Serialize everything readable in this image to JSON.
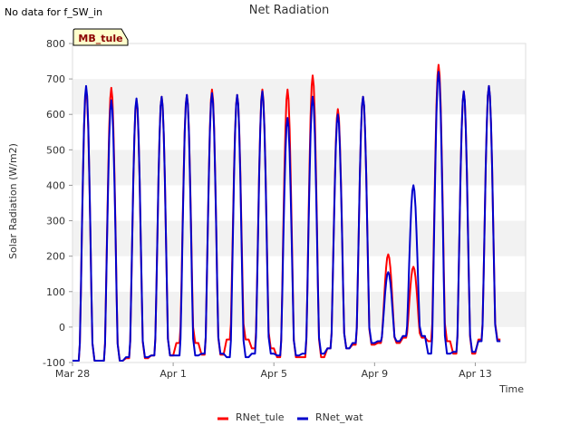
{
  "no_data_note": "No data for f_SW_in",
  "chart_data": {
    "type": "line",
    "title": "Net Radiation",
    "xlabel": "Time",
    "ylabel": "Solar Radiation (W/m2)",
    "site_label": "MB_tule",
    "ylim": [
      -100,
      800
    ],
    "yticks": [
      -100,
      0,
      100,
      200,
      300,
      400,
      500,
      600,
      700,
      800
    ],
    "xlim_days": [
      "2024-03-28",
      "2024-04-15"
    ],
    "xticks": [
      {
        "label": "Mar 28",
        "date": "2024-03-28"
      },
      {
        "label": "Apr 1",
        "date": "2024-04-01"
      },
      {
        "label": "Apr 5",
        "date": "2024-04-05"
      },
      {
        "label": "Apr 9",
        "date": "2024-04-09"
      },
      {
        "label": "Apr 13",
        "date": "2024-04-13"
      }
    ],
    "grid": "horizontal bands",
    "legend_position": "bottom",
    "series": [
      {
        "name": "RNet_tule",
        "color": "#ff0000",
        "daily": [
          {
            "date": "2024-03-28",
            "peak": 670,
            "night": -95
          },
          {
            "date": "2024-03-29",
            "peak": 675,
            "night": -95
          },
          {
            "date": "2024-03-30",
            "peak": 640,
            "night": -88
          },
          {
            "date": "2024-03-31",
            "peak": 650,
            "night": -80
          },
          {
            "date": "2024-04-01",
            "peak": 655,
            "night": -45
          },
          {
            "date": "2024-04-02",
            "peak": 670,
            "night": -78
          },
          {
            "date": "2024-04-03",
            "peak": 655,
            "night": -35
          },
          {
            "date": "2024-04-04",
            "peak": 670,
            "night": -60
          },
          {
            "date": "2024-04-05",
            "peak": 670,
            "night": -85
          },
          {
            "date": "2024-04-06",
            "peak": 710,
            "night": -85
          },
          {
            "date": "2024-04-07",
            "peak": 615,
            "night": -60
          },
          {
            "date": "2024-04-08",
            "peak": 650,
            "night": -50
          },
          {
            "date": "2024-04-09",
            "peak": 205,
            "night": -45
          },
          {
            "date": "2024-04-10",
            "peak": 170,
            "night": -30
          },
          {
            "date": "2024-04-11",
            "peak": 740,
            "night": -40
          },
          {
            "date": "2024-04-12",
            "peak": 665,
            "night": -75
          },
          {
            "date": "2024-04-13",
            "peak": 680,
            "night": -35
          }
        ]
      },
      {
        "name": "RNet_wat",
        "color": "#0000cc",
        "daily": [
          {
            "date": "2024-03-28",
            "peak": 680,
            "night": -95
          },
          {
            "date": "2024-03-29",
            "peak": 640,
            "night": -95
          },
          {
            "date": "2024-03-30",
            "peak": 645,
            "night": -85
          },
          {
            "date": "2024-03-31",
            "peak": 650,
            "night": -80
          },
          {
            "date": "2024-04-01",
            "peak": 655,
            "night": -80
          },
          {
            "date": "2024-04-02",
            "peak": 660,
            "night": -75
          },
          {
            "date": "2024-04-03",
            "peak": 655,
            "night": -85
          },
          {
            "date": "2024-04-04",
            "peak": 665,
            "night": -75
          },
          {
            "date": "2024-04-05",
            "peak": 590,
            "night": -80
          },
          {
            "date": "2024-04-06",
            "peak": 650,
            "night": -75
          },
          {
            "date": "2024-04-07",
            "peak": 600,
            "night": -60
          },
          {
            "date": "2024-04-08",
            "peak": 650,
            "night": -45
          },
          {
            "date": "2024-04-09",
            "peak": 155,
            "night": -40
          },
          {
            "date": "2024-04-10",
            "peak": 400,
            "night": -25
          },
          {
            "date": "2024-04-11",
            "peak": 720,
            "night": -75
          },
          {
            "date": "2024-04-12",
            "peak": 665,
            "night": -70
          },
          {
            "date": "2024-04-13",
            "peak": 680,
            "night": -40
          }
        ]
      }
    ]
  }
}
